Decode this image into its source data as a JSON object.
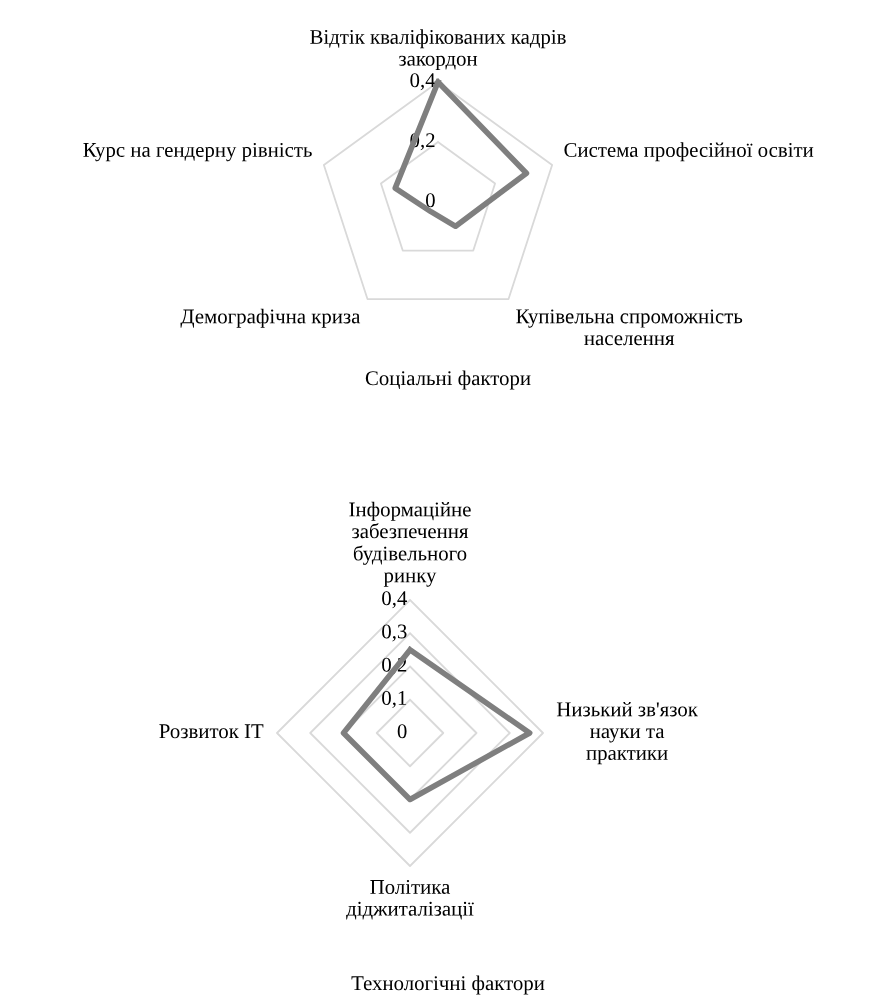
{
  "chart_data": [
    {
      "type": "radar",
      "title": "Соціальні фактори",
      "categories": [
        "Відтік кваліфікованих кадрів\nзакордон",
        "Система професійної освіти",
        "Купівельна спроможність\nнаселення",
        "Демографічна криза",
        "Курс на гендерну рівність"
      ],
      "series": [
        {
          "color": "#7f7f7f",
          "values": [
            0.4,
            0.31,
            0.1,
            0.04,
            0.15
          ]
        }
      ],
      "ylim": [
        0,
        0.4
      ],
      "yticks": [
        {
          "value": 0,
          "label": "0"
        },
        {
          "value": 0.2,
          "label": "0,2"
        },
        {
          "value": 0.4,
          "label": "0,4"
        }
      ],
      "grid": true,
      "marker": "none",
      "line_style": "solid"
    },
    {
      "type": "radar",
      "title": "Технологічні фактори",
      "categories": [
        "Інформаційне\nзабезпечення\nбудівельного\nринку",
        "Низький зв'язок\nнауки та\nпрактики",
        "Політика\nдіджиталізації",
        "Розвиток IT"
      ],
      "series": [
        {
          "color": "#7f7f7f",
          "values": [
            0.25,
            0.36,
            0.2,
            0.2
          ]
        }
      ],
      "ylim": [
        0,
        0.4
      ],
      "yticks": [
        {
          "value": 0,
          "label": "0"
        },
        {
          "value": 0.1,
          "label": "0,1"
        },
        {
          "value": 0.2,
          "label": "0,2"
        },
        {
          "value": 0.3,
          "label": "0,3"
        },
        {
          "value": 0.4,
          "label": "0,4"
        }
      ],
      "grid": true,
      "marker": "none",
      "line_style": "solid"
    }
  ]
}
